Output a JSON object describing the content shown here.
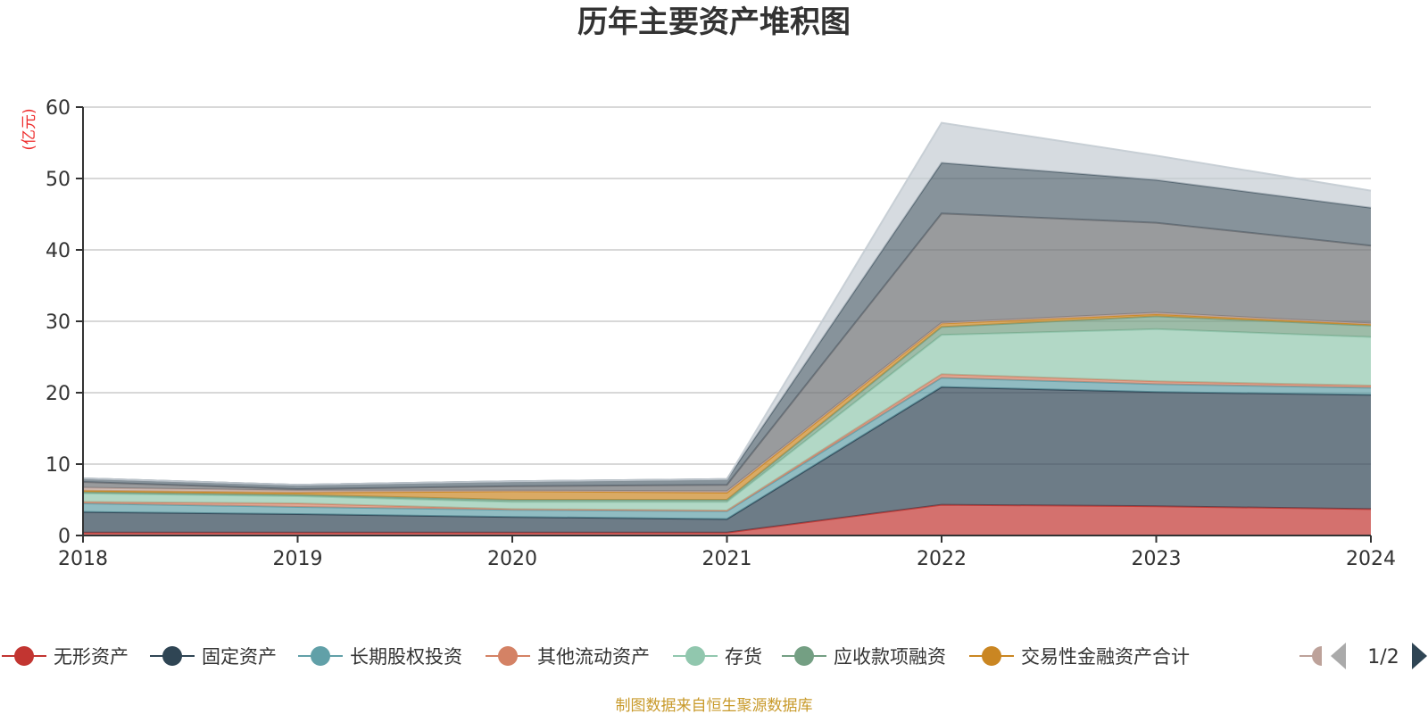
{
  "chart_data": {
    "type": "area",
    "stacked": true,
    "title": "历年主要资产堆积图",
    "unit": "(亿元)",
    "x": [
      "2018",
      "2019",
      "2020",
      "2021",
      "2022",
      "2023",
      "2024"
    ],
    "ylim": [
      0,
      60
    ],
    "yticks": [
      0,
      10,
      20,
      30,
      40,
      50,
      60
    ],
    "grid": true,
    "legend_position": "bottom",
    "series": [
      {
        "name": "无形资产",
        "color": "#c23531",
        "values": [
          0.4,
          0.4,
          0.4,
          0.4,
          4.3,
          4.1,
          3.7
        ]
      },
      {
        "name": "固定资产",
        "color": "#2f4554",
        "values": [
          2.9,
          2.6,
          2.2,
          1.9,
          16.5,
          16.0,
          16.0
        ]
      },
      {
        "name": "长期股权投资",
        "color": "#61a0a8",
        "values": [
          1.2,
          1.0,
          1.0,
          1.1,
          1.3,
          1.1,
          1.0
        ]
      },
      {
        "name": "其他流动资产",
        "color": "#d48265",
        "values": [
          0.2,
          0.5,
          0.1,
          0.1,
          0.5,
          0.4,
          0.3
        ]
      },
      {
        "name": "存货",
        "color": "#91c7ae",
        "values": [
          1.2,
          1.0,
          1.0,
          1.2,
          5.5,
          7.3,
          6.8
        ]
      },
      {
        "name": "应收款项融资",
        "color": "#749f83",
        "values": [
          0.2,
          0.2,
          0.3,
          0.3,
          1.1,
          1.8,
          1.6
        ]
      },
      {
        "name": "交易性金融资产合计",
        "color": "#ca8622",
        "values": [
          0.2,
          0.3,
          1.2,
          1.0,
          0.5,
          0.3,
          0.2
        ]
      },
      {
        "name": "",
        "color": "#bda29a",
        "values": [
          0.4,
          0.3,
          0.1,
          0.2,
          0.1,
          0.2,
          0.1
        ]
      },
      {
        "name": "",
        "color": "#6e7074",
        "values": [
          0.8,
          0.2,
          0.6,
          0.9,
          15.3,
          12.6,
          10.9
        ]
      },
      {
        "name": "",
        "color": "#546570",
        "values": [
          0.5,
          0.6,
          0.7,
          0.8,
          7.1,
          6.0,
          5.3
        ]
      },
      {
        "name": "",
        "color": "#c4ccd3",
        "values": [
          0.0,
          0.0,
          0.0,
          0.0,
          5.6,
          3.4,
          2.4
        ]
      }
    ]
  },
  "legend": {
    "page_indicator": "1/2",
    "prev_icon": "triangle-left-icon",
    "next_icon": "triangle-right-icon"
  },
  "source_note": "制图数据来自恒生聚源数据库"
}
